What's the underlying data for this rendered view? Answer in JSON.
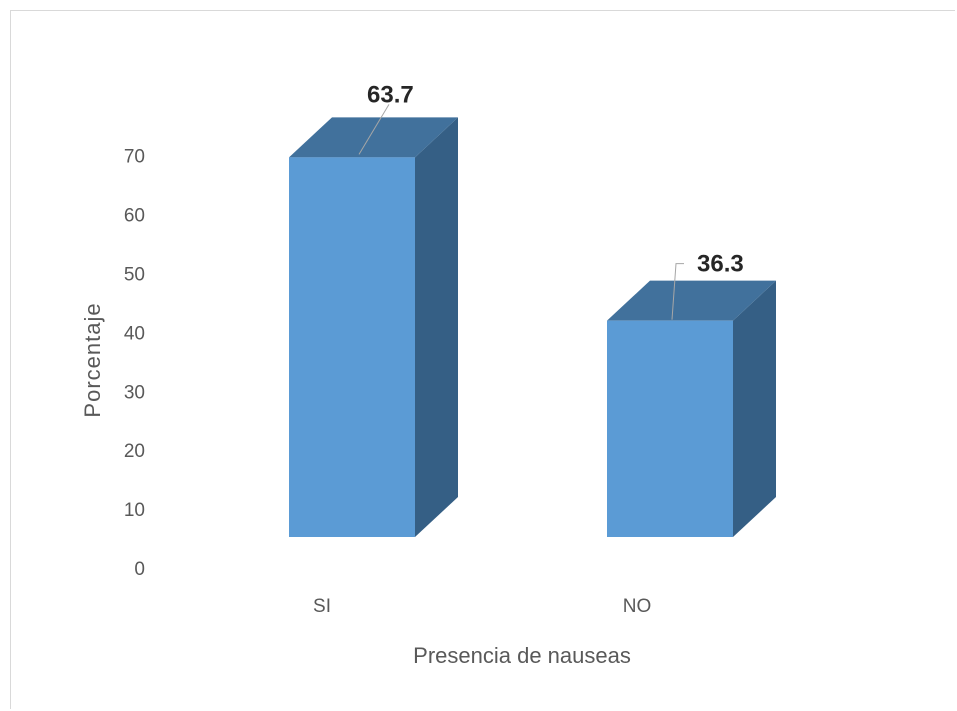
{
  "chart_data": {
    "type": "bar",
    "categories": [
      "SI",
      "NO"
    ],
    "values": [
      63.7,
      36.3
    ],
    "value_labels": [
      "63.7",
      "36.3"
    ],
    "title": "",
    "xlabel": "Presencia de nauseas",
    "ylabel": "Porcentaje",
    "ylim": [
      0,
      70
    ],
    "yticks": [
      "0",
      "10",
      "20",
      "30",
      "40",
      "50",
      "60",
      "70"
    ],
    "grid": false,
    "legend": "none",
    "style": "3d-column",
    "colors": {
      "front": "#5b9bd5",
      "top": "#41719c",
      "side": "#355f85",
      "text": "#595959",
      "label": "#262626"
    }
  }
}
